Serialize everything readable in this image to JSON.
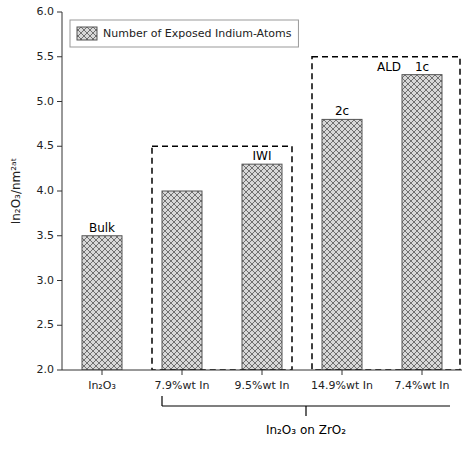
{
  "chart_data": {
    "type": "bar",
    "categories": [
      "In₂O₃",
      "7.9%wt In",
      "9.5%wt In",
      "14.9%wt In",
      "7.4%wt In"
    ],
    "series": [
      {
        "name": "Number of Exposed Indium-Atoms",
        "color": "#d8d8d8",
        "values": [
          3.5,
          4.0,
          4.3,
          4.8,
          5.3
        ]
      }
    ],
    "bar_labels": [
      "Bulk",
      null,
      "IWI",
      "2c",
      "1c"
    ],
    "boxes": [
      {
        "from": 1,
        "to": 2,
        "bottom": 2.0,
        "top": 4.5
      },
      {
        "from": 3,
        "to": 4,
        "bottom": 2.0,
        "top": 5.5,
        "label": "ALD"
      }
    ],
    "bracket": {
      "from": 1,
      "to": 4,
      "label": "In₂O₃ on ZrO₂"
    },
    "ylabel": "In₂O₃/nm²ᵃᵗ",
    "ylim": [
      2.0,
      6.0
    ],
    "yticks": [
      {
        "value": 2.0,
        "label": "2.0"
      },
      2.5,
      {
        "value": 3.0,
        "label": "3.0"
      },
      3.5,
      {
        "value": 4.0,
        "label": "4.0"
      },
      4.5,
      {
        "value": 5.0,
        "label": "5.0"
      },
      5.5,
      {
        "value": 6.0,
        "label": "6.0"
      }
    ],
    "legend": "upper left",
    "grid": false
  }
}
